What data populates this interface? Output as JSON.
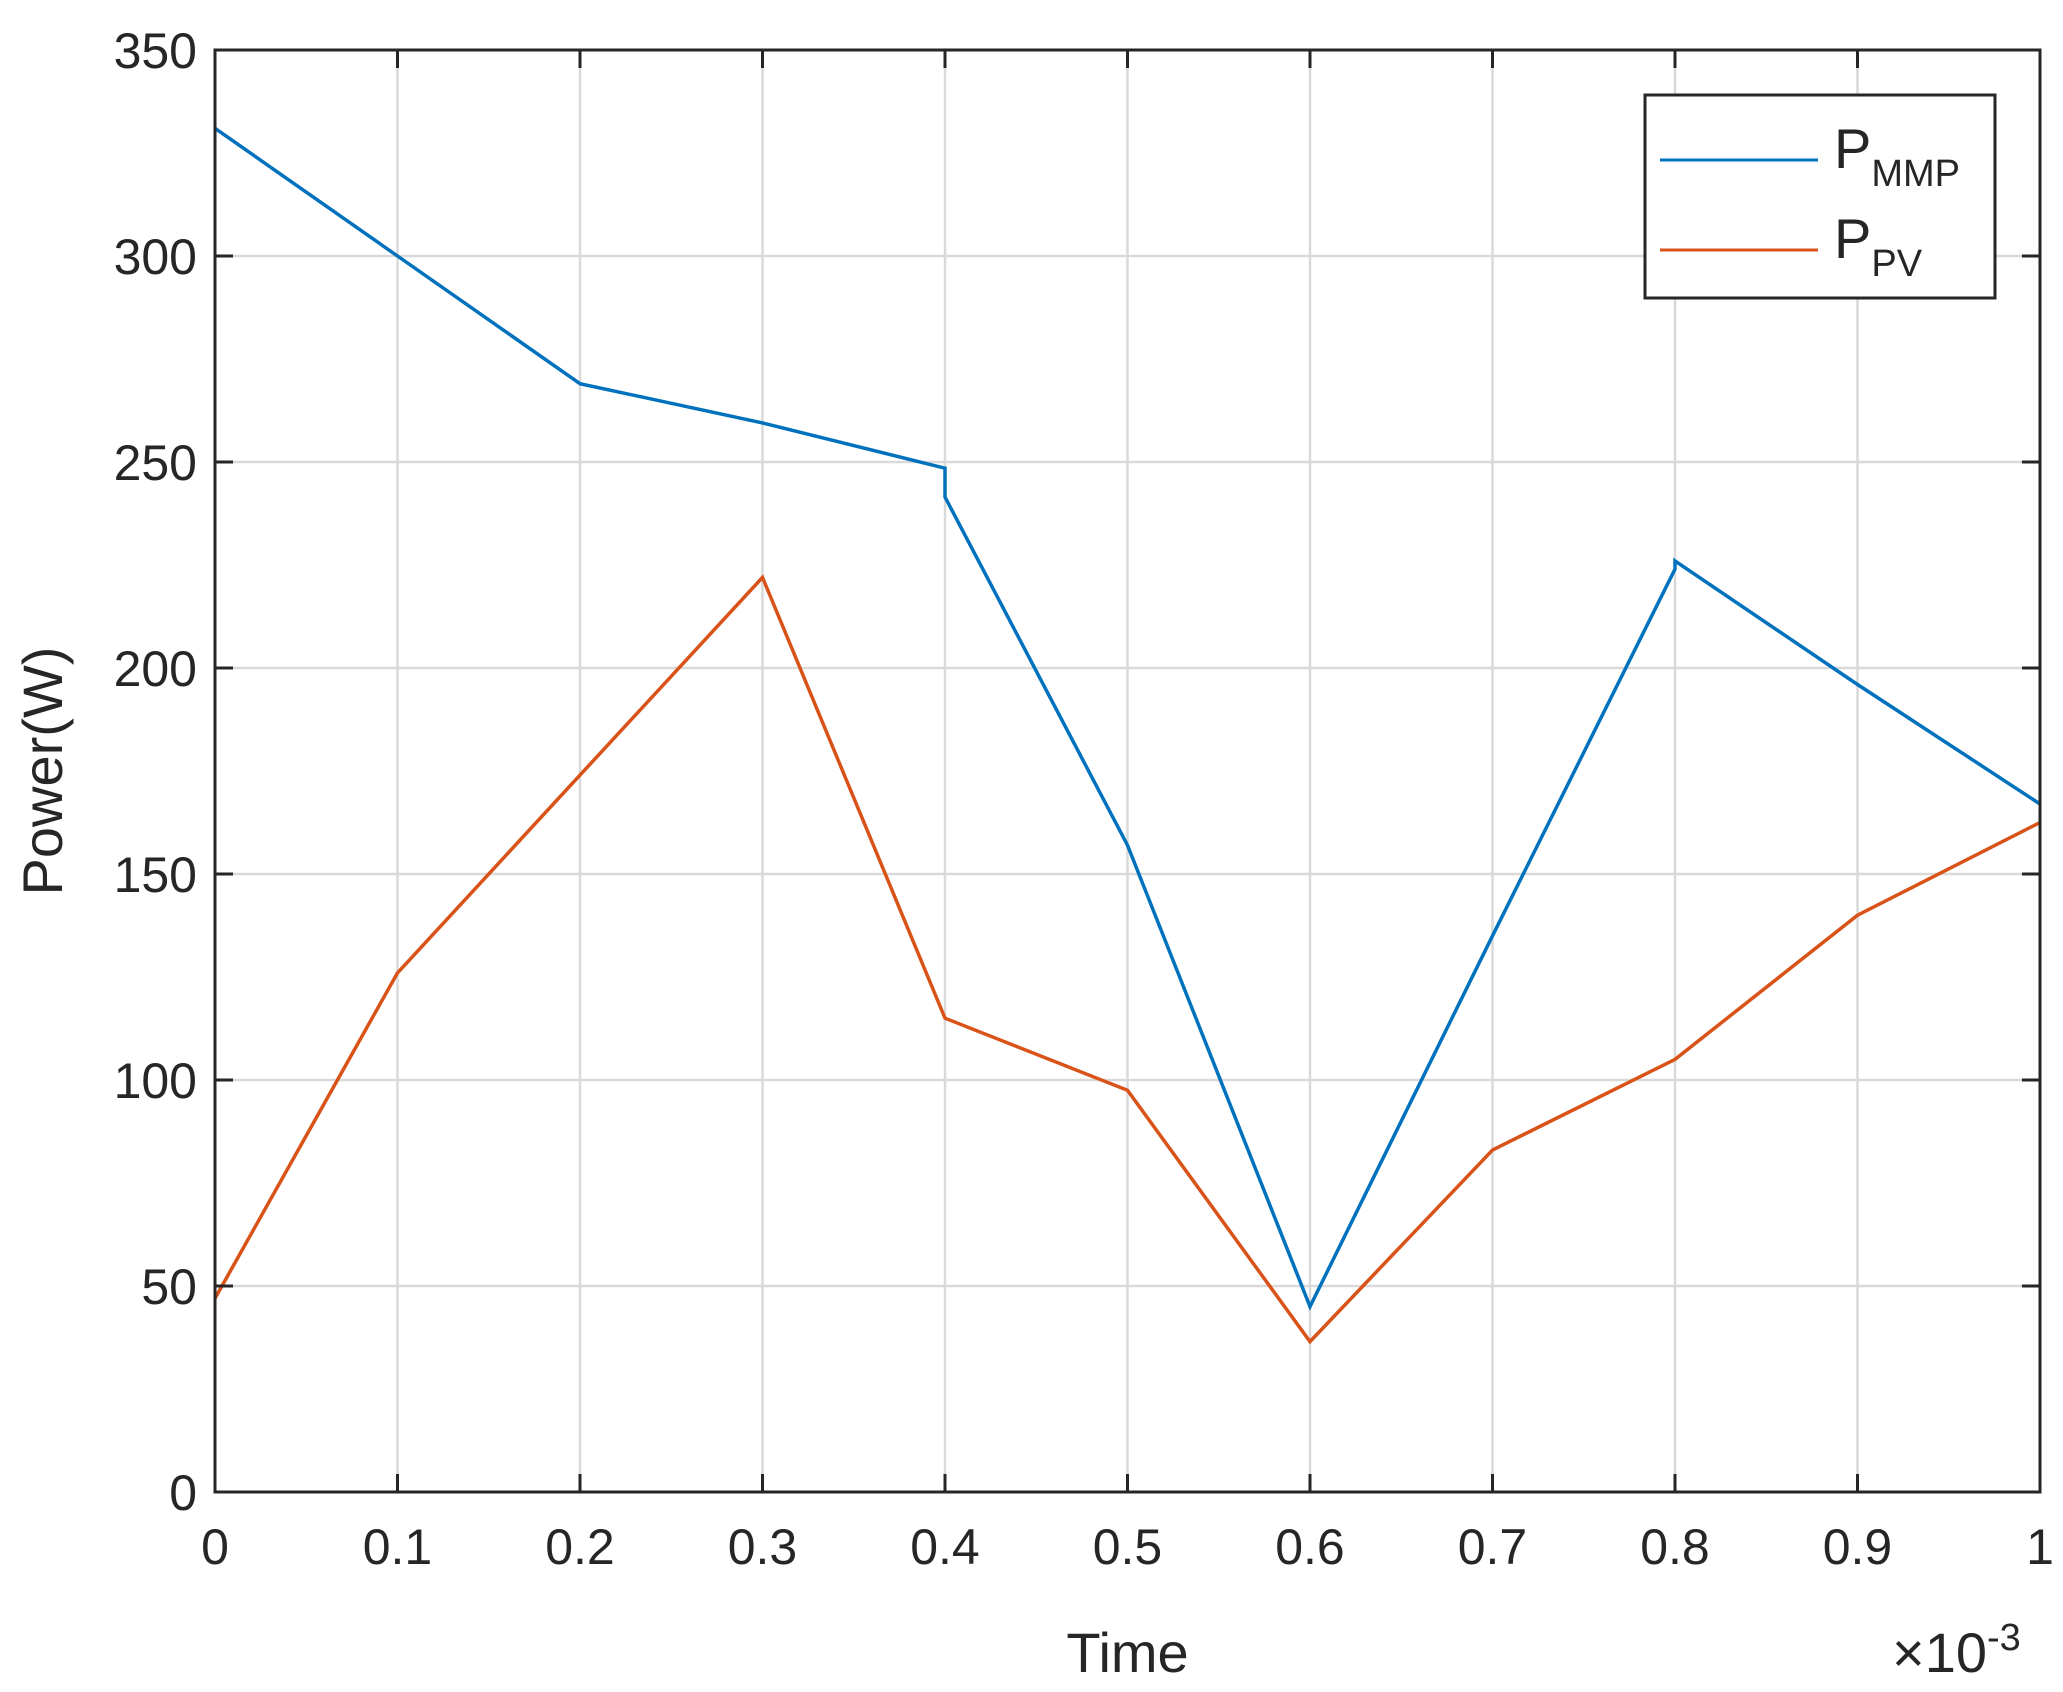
{
  "chart_data": {
    "type": "line",
    "xlabel": "Time",
    "ylabel": "Power(W)",
    "xlim": [
      0,
      1
    ],
    "ylim": [
      0,
      350
    ],
    "x_exponent_label": "×10",
    "x_exponent_power": "-3",
    "xticks": [
      0,
      0.1,
      0.2,
      0.3,
      0.4,
      0.5,
      0.6,
      0.7,
      0.8,
      0.9,
      1
    ],
    "xtick_labels": [
      "0",
      "0.1",
      "0.2",
      "0.3",
      "0.4",
      "0.5",
      "0.6",
      "0.7",
      "0.8",
      "0.9",
      "1"
    ],
    "yticks": [
      0,
      50,
      100,
      150,
      200,
      250,
      300,
      350
    ],
    "ytick_labels": [
      "0",
      "50",
      "100",
      "150",
      "200",
      "250",
      "300",
      "350"
    ],
    "grid": true,
    "legend_position": "top-right",
    "series": [
      {
        "name": "P",
        "name_subscript": "MMP",
        "color": "#0072BD",
        "x": [
          0,
          0.1,
          0.2,
          0.3,
          0.4,
          0.4,
          0.5,
          0.6,
          0.7,
          0.8,
          0.8,
          0.9,
          1
        ],
        "y": [
          331,
          300,
          269,
          259.5,
          248.5,
          241.5,
          157,
          45,
          135,
          224,
          226,
          196,
          167
        ]
      },
      {
        "name": "P",
        "name_subscript": "PV",
        "color": "#D95319",
        "x": [
          0,
          0.1,
          0.2,
          0.3,
          0.4,
          0.5,
          0.6,
          0.7,
          0.8,
          0.9,
          1
        ],
        "y": [
          47,
          126,
          174,
          222,
          115,
          97.5,
          36.5,
          83,
          105,
          140,
          162.5
        ]
      }
    ]
  }
}
